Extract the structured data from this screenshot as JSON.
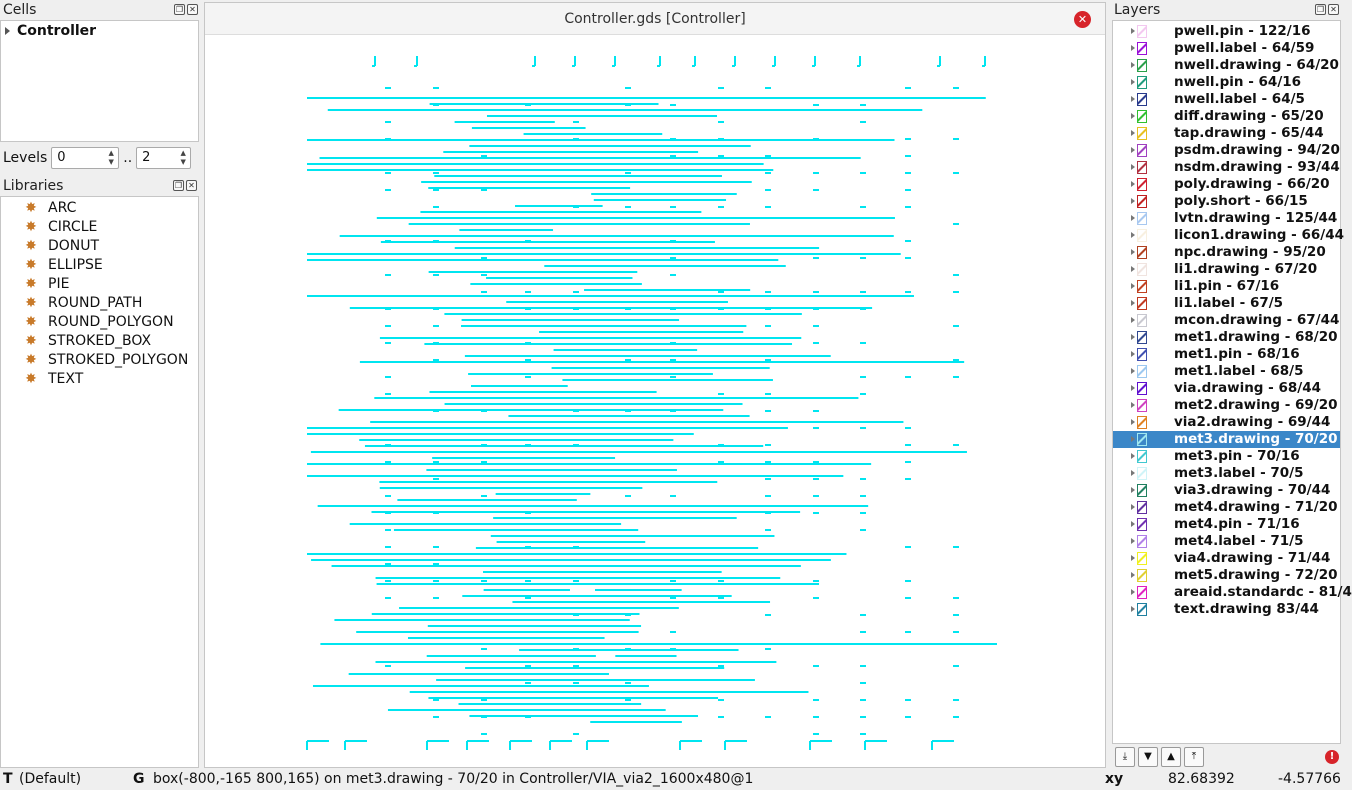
{
  "cells_panel": {
    "title": "Cells",
    "top_cell": "Controller"
  },
  "levels": {
    "label": "Levels",
    "from": "0",
    "sep": "..",
    "to": "2"
  },
  "libraries": {
    "title": "Libraries",
    "items": [
      "ARC",
      "CIRCLE",
      "DONUT",
      "ELLIPSE",
      "PIE",
      "ROUND_PATH",
      "ROUND_POLYGON",
      "STROKED_BOX",
      "STROKED_POLYGON",
      "TEXT"
    ]
  },
  "canvas": {
    "title": "Controller.gds [Controller]",
    "shape_color": "#00e5f0"
  },
  "layers_panel": {
    "title": "Layers",
    "selected_index": 24,
    "items": [
      {
        "name": "pwell.pin - 122/16",
        "color": "#f3c8f0"
      },
      {
        "name": "pwell.label - 64/59",
        "color": "#9a10d8"
      },
      {
        "name": "nwell.drawing - 64/20",
        "color": "#2aa04a"
      },
      {
        "name": "nwell.pin - 64/16",
        "color": "#1e9a7c"
      },
      {
        "name": "nwell.label - 64/5",
        "color": "#283a8c"
      },
      {
        "name": "diff.drawing - 65/20",
        "color": "#30c030"
      },
      {
        "name": "tap.drawing - 65/44",
        "color": "#e8c020"
      },
      {
        "name": "psdm.drawing - 94/20",
        "color": "#a040c0"
      },
      {
        "name": "nsdm.drawing - 93/44",
        "color": "#b03040"
      },
      {
        "name": "poly.drawing - 66/20",
        "color": "#d02030"
      },
      {
        "name": "poly.short - 66/15",
        "color": "#c02020"
      },
      {
        "name": "lvtn.drawing - 125/44",
        "color": "#a8c8f0"
      },
      {
        "name": "licon1.drawing - 66/44",
        "color": "#f8f0e0"
      },
      {
        "name": "npc.drawing - 95/20",
        "color": "#b04020"
      },
      {
        "name": "li1.drawing - 67/20",
        "color": "#f0e4e0"
      },
      {
        "name": "li1.pin - 67/16",
        "color": "#c04020"
      },
      {
        "name": "li1.label - 67/5",
        "color": "#c03820"
      },
      {
        "name": "mcon.drawing - 67/44",
        "color": "#c8c8d0"
      },
      {
        "name": "met1.drawing - 68/20",
        "color": "#304890"
      },
      {
        "name": "met1.pin - 68/16",
        "color": "#4050b0"
      },
      {
        "name": "met1.label - 68/5",
        "color": "#9cc8f0"
      },
      {
        "name": "via.drawing - 68/44",
        "color": "#6010d0"
      },
      {
        "name": "met2.drawing - 69/20",
        "color": "#d040c0"
      },
      {
        "name": "via2.drawing - 69/44",
        "color": "#e08020"
      },
      {
        "name": "met3.drawing - 70/20",
        "color": "#a0e8f0"
      },
      {
        "name": "met3.pin - 70/16",
        "color": "#40c8d0"
      },
      {
        "name": "met3.label - 70/5",
        "color": "#d0f4f8"
      },
      {
        "name": "via3.drawing - 70/44",
        "color": "#208060"
      },
      {
        "name": "met4.drawing - 71/20",
        "color": "#6030a0"
      },
      {
        "name": "met4.pin - 71/16",
        "color": "#7030b0"
      },
      {
        "name": "met4.label - 71/5",
        "color": "#b080e8"
      },
      {
        "name": "via4.drawing - 71/44",
        "color": "#f0f020"
      },
      {
        "name": "met5.drawing - 72/20",
        "color": "#e0d030"
      },
      {
        "name": "areaid.standardc - 81/4",
        "color": "#e020c0"
      },
      {
        "name": "text.drawing 83/44",
        "color": "#2080a0"
      }
    ]
  },
  "status": {
    "tool": "T",
    "tool_mode": "(Default)",
    "grid_key": "G",
    "message": "box(-800,-165 800,165) on met3.drawing - 70/20 in Controller/VIA_via2_1600x480@1",
    "coord_label": "xy",
    "x": "82.68392",
    "y": "-4.57766"
  }
}
